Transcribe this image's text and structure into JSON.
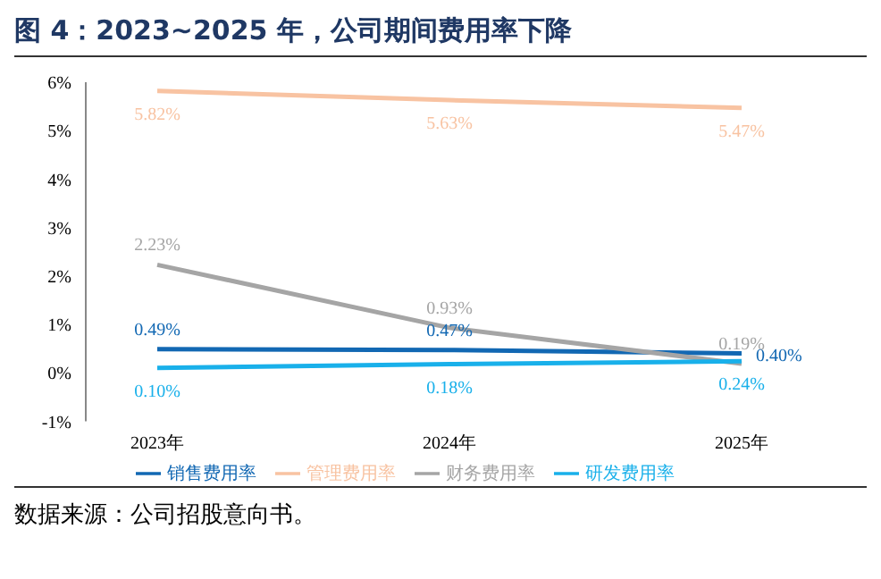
{
  "chart_data": {
    "type": "line",
    "title": "图 4：2023~2025 年，公司期间费用率下降",
    "categories": [
      "2023年",
      "2024年",
      "2025年"
    ],
    "series": [
      {
        "name": "销售费用率",
        "color": "#1268b3",
        "values": [
          0.49,
          0.47,
          0.4
        ],
        "value_labels": [
          "0.49%",
          "0.47%",
          "0.40%"
        ]
      },
      {
        "name": "管理费用率",
        "color": "#f8c3a2",
        "values": [
          5.82,
          5.63,
          5.47
        ],
        "value_labels": [
          "5.82%",
          "5.63%",
          "5.47%"
        ]
      },
      {
        "name": "财务费用率",
        "color": "#a5a5a5",
        "values": [
          2.23,
          0.93,
          0.19
        ],
        "value_labels": [
          "2.23%",
          "0.93%",
          "0.19%"
        ]
      },
      {
        "name": "研发费用率",
        "color": "#19b0ea",
        "values": [
          0.1,
          0.18,
          0.24
        ],
        "value_labels": [
          "0.10%",
          "0.18%",
          "0.24%"
        ]
      }
    ],
    "ylim": [
      -1,
      6
    ],
    "yticks": [
      {
        "value": -1,
        "label": "-1%"
      },
      {
        "value": 0,
        "label": "0%"
      },
      {
        "value": 1,
        "label": "1%"
      },
      {
        "value": 2,
        "label": "2%"
      },
      {
        "value": 3,
        "label": "3%"
      },
      {
        "value": 4,
        "label": "4%"
      },
      {
        "value": 5,
        "label": "5%"
      },
      {
        "value": 6,
        "label": "6%"
      }
    ],
    "grid": false,
    "legend": "bottom",
    "marker": "none",
    "line_style": "solid",
    "annotations": [
      "数据来源：公司招股意向书。"
    ]
  }
}
